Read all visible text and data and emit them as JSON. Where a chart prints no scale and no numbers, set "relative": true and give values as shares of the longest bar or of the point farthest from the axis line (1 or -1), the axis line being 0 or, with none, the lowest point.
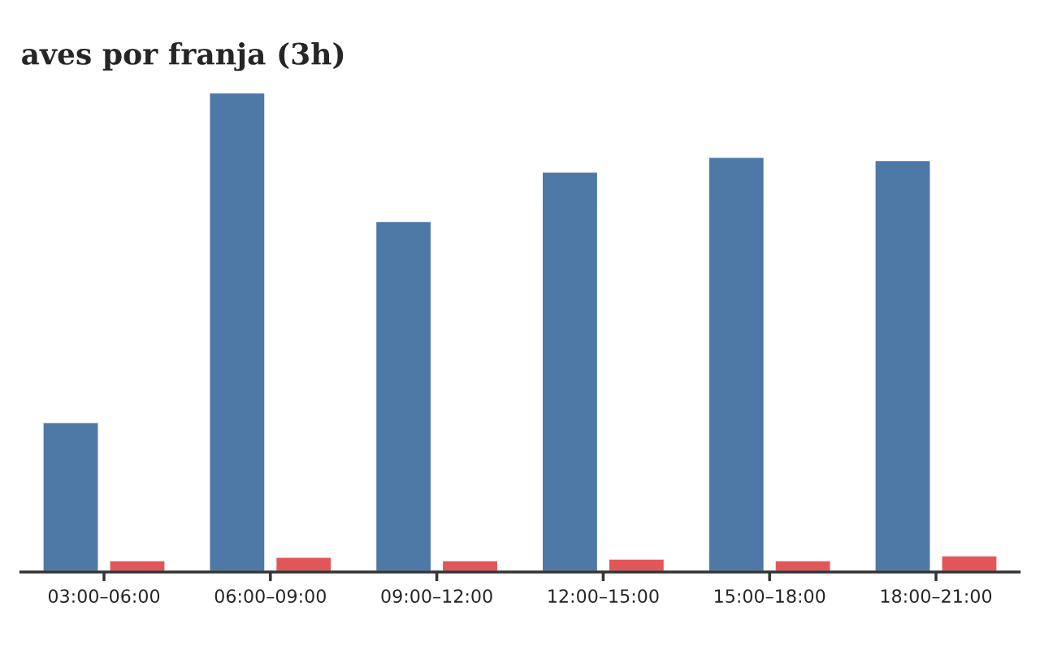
{
  "chart_data": {
    "type": "bar",
    "title": "aves por franja (3h)",
    "relative": true,
    "categories": [
      "03:00–06:00",
      "06:00–09:00",
      "09:00–12:00",
      "12:00–15:00",
      "15:00–18:00",
      "18:00–21:00"
    ],
    "series": [
      {
        "color": "#4e79a7",
        "values": [
          0.313,
          1,
          0.732,
          0.835,
          0.866,
          0.859
        ]
      },
      {
        "color": "#e15759",
        "values": [
          0.025,
          0.032,
          0.025,
          0.028,
          0.025,
          0.035
        ]
      }
    ],
    "grid": false
  }
}
